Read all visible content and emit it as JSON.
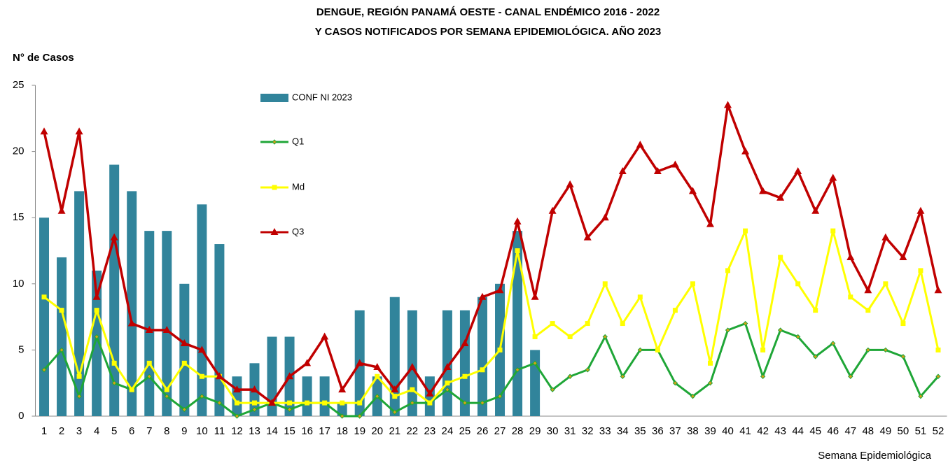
{
  "chart_data": {
    "type": "bar-line",
    "title": "DENGUE, REGIÓN PANAMÁ OESTE - CANAL ENDÉMICO 2016 - 2022",
    "subtitle": "Y CASOS NOTIFICADOS POR SEMANA EPIDEMIOLÓGICA. AÑO 2023",
    "y_label": "N° de Casos",
    "x_label": "Semana Epidemiológica",
    "categories": [
      "1",
      "2",
      "3",
      "4",
      "5",
      "6",
      "7",
      "8",
      "9",
      "10",
      "11",
      "12",
      "13",
      "14",
      "15",
      "16",
      "17",
      "18",
      "19",
      "20",
      "21",
      "22",
      "23",
      "24",
      "25",
      "26",
      "27",
      "28",
      "29",
      "30",
      "31",
      "32",
      "33",
      "34",
      "35",
      "36",
      "37",
      "38",
      "39",
      "40",
      "41",
      "42",
      "43",
      "44",
      "45",
      "46",
      "47",
      "48",
      "49",
      "50",
      "51",
      "52"
    ],
    "ylim": [
      0,
      25
    ],
    "yticks": [
      0,
      5,
      10,
      15,
      20,
      25
    ],
    "grid": false,
    "series": [
      {
        "name": "CONF NI 2023",
        "type": "bar",
        "color": "#31849b",
        "values": [
          15,
          12,
          17,
          11,
          19,
          17,
          14,
          14,
          10,
          16,
          13,
          3,
          4,
          6,
          6,
          3,
          3,
          1,
          8,
          3,
          9,
          8,
          3,
          8,
          8,
          9,
          10,
          14,
          5,
          null,
          null,
          null,
          null,
          null,
          null,
          null,
          null,
          null,
          null,
          null,
          null,
          null,
          null,
          null,
          null,
          null,
          null,
          null,
          null,
          null,
          null,
          null
        ]
      },
      {
        "name": "Q1",
        "type": "line",
        "marker": "diamond",
        "color": "#1fa637",
        "values": [
          3.5,
          5,
          1.5,
          6,
          2.5,
          2,
          3,
          1.5,
          0.5,
          1.5,
          1,
          0,
          0.5,
          1,
          0.5,
          1,
          1,
          0,
          0,
          1.5,
          0.3,
          1,
          1,
          2,
          1,
          1,
          1.5,
          3.5,
          4,
          2,
          3,
          3.5,
          6,
          3,
          5,
          5,
          2.5,
          1.5,
          2.5,
          6.5,
          7,
          3,
          6.5,
          6,
          4.5,
          5.5,
          3,
          5,
          5,
          4.5,
          1.5,
          3
        ]
      },
      {
        "name": "Md",
        "type": "line",
        "marker": "square",
        "color": "#ffff00",
        "values": [
          9,
          8,
          3,
          8,
          4,
          2,
          4,
          2,
          4,
          3,
          3,
          1,
          1,
          1,
          1,
          1,
          1,
          1,
          1,
          3,
          1.5,
          2,
          1,
          2.5,
          3,
          3.5,
          5,
          12.5,
          6,
          7,
          6,
          7,
          10,
          7,
          9,
          5,
          8,
          10,
          4,
          11,
          14,
          5,
          12,
          10,
          8,
          14,
          9,
          8,
          10,
          7,
          11,
          5
        ]
      },
      {
        "name": "Q3",
        "type": "line",
        "marker": "triangle",
        "color": "#c00000",
        "values": [
          21.5,
          15.5,
          21.5,
          9,
          13.5,
          7,
          6.5,
          6.5,
          5.5,
          5,
          3,
          2,
          2,
          1,
          3,
          4,
          6,
          2,
          4,
          3.7,
          2,
          3.7,
          1.7,
          3.7,
          5.5,
          9,
          9.5,
          14.7,
          9,
          15.5,
          17.5,
          13.5,
          15,
          18.5,
          20.5,
          18.5,
          19,
          17,
          14.5,
          23.5,
          20,
          17,
          16.5,
          18.5,
          15.5,
          18,
          12,
          9.5,
          13.5,
          12,
          15.5,
          9.5
        ]
      }
    ]
  }
}
